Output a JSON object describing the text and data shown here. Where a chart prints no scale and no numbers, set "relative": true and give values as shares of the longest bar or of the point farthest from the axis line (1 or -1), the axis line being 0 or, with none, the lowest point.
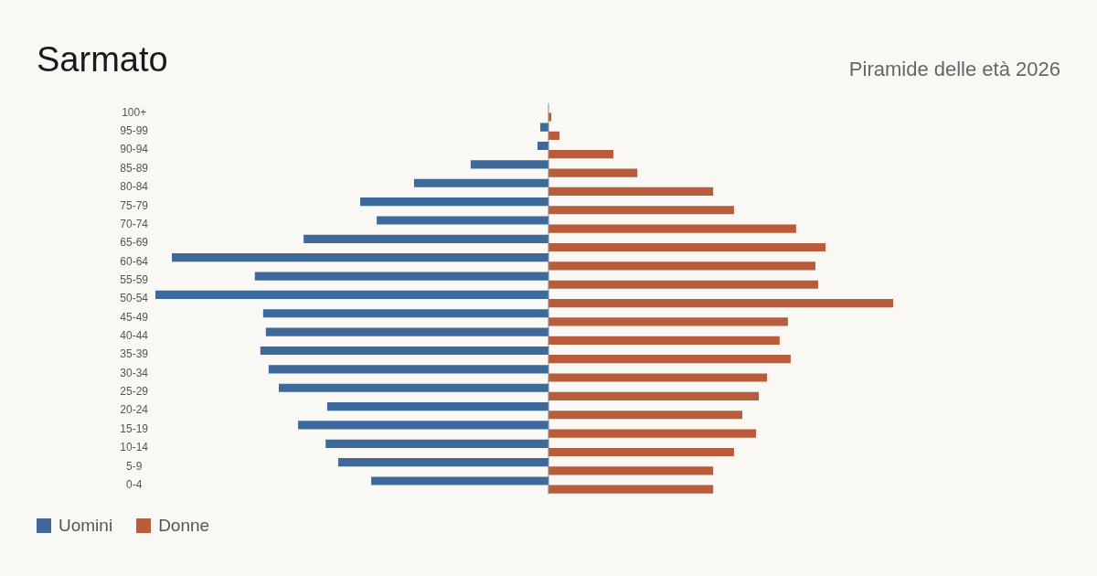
{
  "chart_data": {
    "type": "bar",
    "orientation": "horizontal",
    "relative": true,
    "title": "Sarmato",
    "subtitle": "Piramide delle età 2026",
    "categories": [
      "100+",
      "95-99",
      "90-94",
      "85-89",
      "80-84",
      "75-79",
      "70-74",
      "65-69",
      "60-64",
      "55-59",
      "50-54",
      "45-49",
      "40-44",
      "35-39",
      "30-34",
      "25-29",
      "20-24",
      "15-19",
      "10-14",
      "5-9",
      "0-4"
    ],
    "series": [
      {
        "name": "Uomini",
        "color": "#3d6a9a",
        "values": [
          0,
          -0.021,
          -0.028,
          -0.198,
          -0.342,
          -0.479,
          -0.437,
          -0.623,
          -0.958,
          -0.747,
          -1,
          -0.726,
          -0.719,
          -0.733,
          -0.712,
          -0.686,
          -0.563,
          -0.637,
          -0.567,
          -0.535,
          -0.451
        ]
      },
      {
        "name": "Donne",
        "color": "#b95c3c",
        "values": [
          0.007,
          0.028,
          0.165,
          0.226,
          0.419,
          0.472,
          0.63,
          0.705,
          0.679,
          0.686,
          0.877,
          0.609,
          0.588,
          0.616,
          0.556,
          0.535,
          0.493,
          0.528,
          0.472,
          0.419,
          0.419
        ]
      }
    ],
    "grid": false,
    "legend": "bottom left"
  }
}
